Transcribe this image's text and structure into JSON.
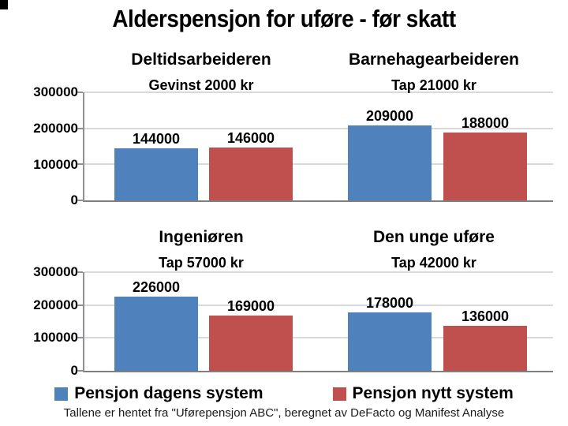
{
  "page": {
    "title": "Alderspensjon for uføre - før skatt"
  },
  "axis": {
    "ticks": [
      "300000",
      "200000",
      "100000",
      "0"
    ]
  },
  "legend": [
    {
      "label": "Pensjon dagens system",
      "color": "#4F81BD"
    },
    {
      "label": "Pensjon nytt system",
      "color": "#C0504D"
    }
  ],
  "footer": {
    "source": "Tallene er hentet fra \"Uførepensjon ABC\", beregnet av DeFacto og Manifest Analyse"
  },
  "chart_data": [
    {
      "type": "bar",
      "title": "Deltidsarbeideren",
      "subtitle": "Gevinst 2000 kr",
      "categories": [
        "Pensjon dagens system",
        "Pensjon nytt system"
      ],
      "values": [
        144000,
        146000
      ],
      "ylim": [
        0,
        300000
      ],
      "yticks": [
        0,
        100000,
        200000,
        300000
      ],
      "grid": true
    },
    {
      "type": "bar",
      "title": "Barnehagearbeideren",
      "subtitle": "Tap 21000 kr",
      "categories": [
        "Pensjon dagens system",
        "Pensjon nytt system"
      ],
      "values": [
        209000,
        188000
      ],
      "ylim": [
        0,
        300000
      ],
      "yticks": [
        0,
        100000,
        200000,
        300000
      ],
      "grid": true
    },
    {
      "type": "bar",
      "title": "Ingeniøren",
      "subtitle": "Tap 57000 kr",
      "categories": [
        "Pensjon dagens system",
        "Pensjon nytt system"
      ],
      "values": [
        226000,
        169000
      ],
      "ylim": [
        0,
        300000
      ],
      "yticks": [
        0,
        100000,
        200000,
        300000
      ],
      "grid": true
    },
    {
      "type": "bar",
      "title": "Den unge uføre",
      "subtitle": "Tap 42000 kr",
      "categories": [
        "Pensjon dagens system",
        "Pensjon nytt system"
      ],
      "values": [
        178000,
        136000
      ],
      "ylim": [
        0,
        300000
      ],
      "yticks": [
        0,
        100000,
        200000,
        300000
      ],
      "grid": true
    }
  ]
}
